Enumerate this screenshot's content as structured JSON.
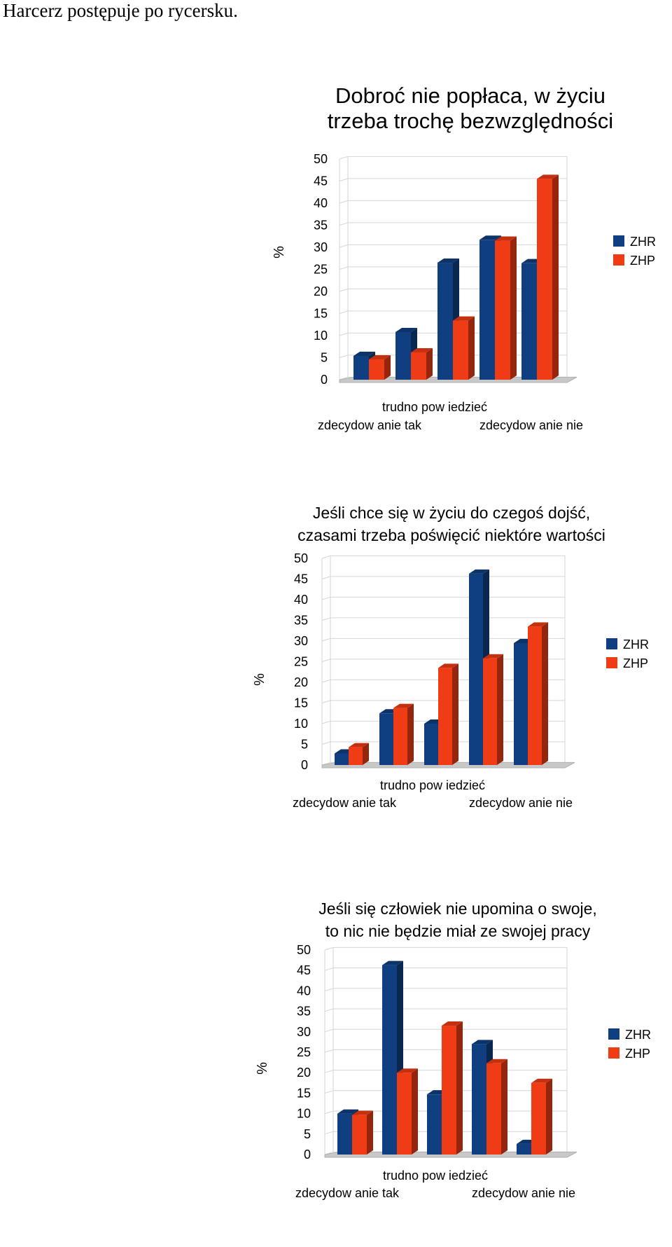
{
  "heading": "Harcerz postępuje po rycersku.",
  "colors": {
    "ZHR": "#0f3f80",
    "ZHP": "#f03c14"
  },
  "chart_data": [
    {
      "type": "bar",
      "title": [
        "Dobroć nie popłaca, w życiu",
        "trzeba trochę bezwzględności"
      ],
      "ylabel": "%",
      "ylim": [
        0,
        50
      ],
      "yticks": [
        0,
        5,
        10,
        15,
        20,
        25,
        30,
        35,
        40,
        45,
        50
      ],
      "xlabels": [
        "trudno pow iedzieć",
        "zdecydow anie tak",
        "zdecydow anie nie"
      ],
      "categories": [
        "zdecydow anie tak",
        "",
        "trudno pow iedzieć",
        "",
        "zdecydow anie nie"
      ],
      "legend_position": "right",
      "series": [
        {
          "name": "ZHR",
          "values": [
            5.4,
            10.8,
            26.5,
            31.7,
            26.4
          ]
        },
        {
          "name": "ZHP",
          "values": [
            4.6,
            6.2,
            13.4,
            31.5,
            45.5
          ]
        }
      ]
    },
    {
      "type": "bar",
      "title": [
        "Jeśli chce się w życiu do czegoś dojść,",
        "czasami trzeba poświęcić niektóre wartości"
      ],
      "ylabel": "%",
      "ylim": [
        0,
        50
      ],
      "yticks": [
        0,
        5,
        10,
        15,
        20,
        25,
        30,
        35,
        40,
        45,
        50
      ],
      "xlabels": [
        "trudno pow iedzieć",
        "zdecydow anie tak",
        "zdecydow anie nie"
      ],
      "categories": [
        "zdecydow anie tak",
        "",
        "trudno pow iedzieć",
        "",
        "zdecydow anie nie"
      ],
      "legend_position": "right",
      "series": [
        {
          "name": "ZHR",
          "values": [
            2.8,
            12.5,
            10.0,
            46.3,
            29.5
          ]
        },
        {
          "name": "ZHP",
          "values": [
            4.3,
            13.8,
            23.5,
            25.8,
            33.5
          ]
        }
      ]
    },
    {
      "type": "bar",
      "title": [
        "Jeśli się człowiek nie upomina o swoje,",
        "to nic nie będzie miał ze swojej pracy"
      ],
      "ylabel": "%",
      "ylim": [
        0,
        50
      ],
      "yticks": [
        0,
        5,
        10,
        15,
        20,
        25,
        30,
        35,
        40,
        45,
        50
      ],
      "xlabels": [
        "trudno pow iedzieć",
        "zdecydow anie tak",
        "zdecydow anie nie"
      ],
      "categories": [
        "zdecydow anie tak",
        "",
        "trudno pow iedzieć",
        "",
        "zdecydow anie nie"
      ],
      "legend_position": "right",
      "series": [
        {
          "name": "ZHR",
          "values": [
            10.0,
            46.3,
            14.7,
            27.0,
            2.6
          ]
        },
        {
          "name": "ZHP",
          "values": [
            9.7,
            20.0,
            31.5,
            22.3,
            17.5
          ]
        }
      ]
    }
  ]
}
